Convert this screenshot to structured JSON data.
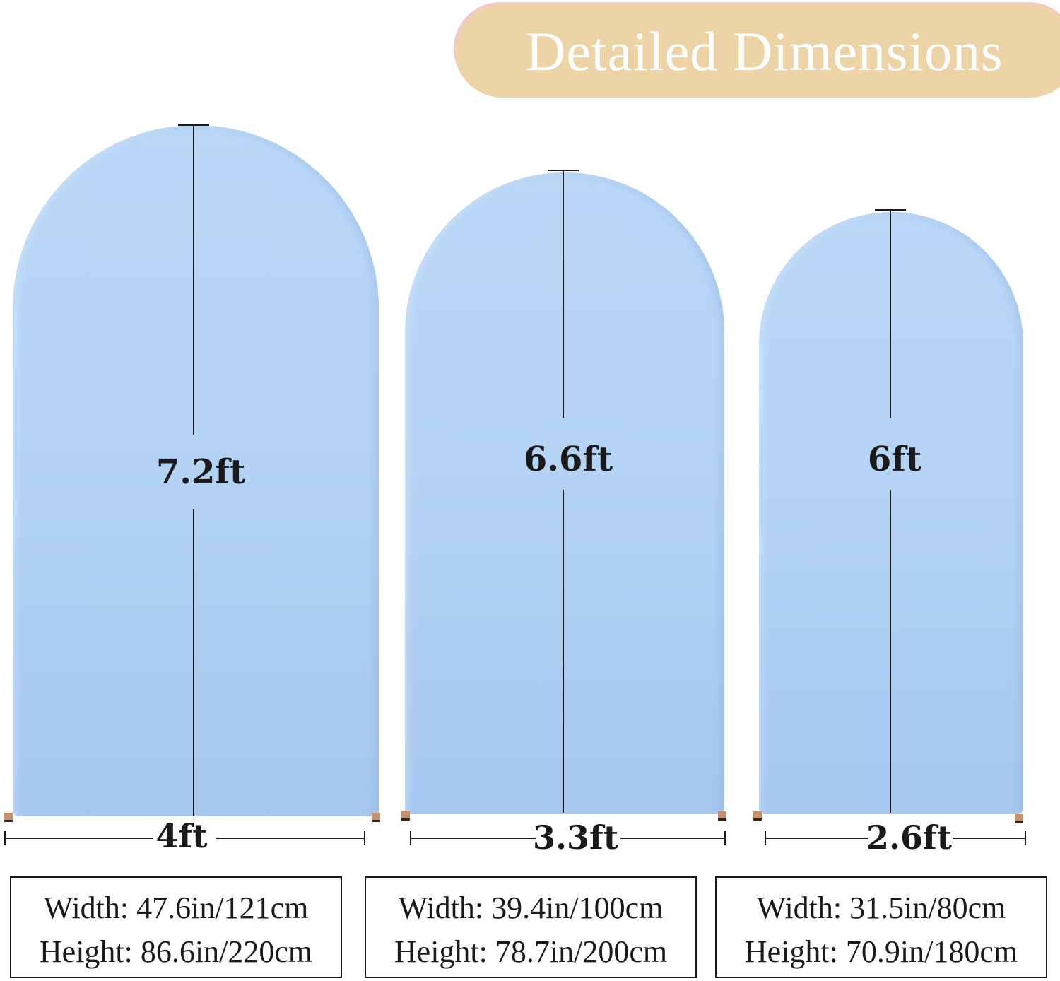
{
  "banner": {
    "title": "Detailed Dimensions"
  },
  "arches": [
    {
      "height_label": "7.2ft",
      "width_label": "4ft",
      "width_spec": "Width: 47.6in/121cm",
      "height_spec": "Height: 86.6in/220cm"
    },
    {
      "height_label": "6.6ft",
      "width_label": "3.3ft",
      "width_spec": "Width: 39.4in/100cm",
      "height_spec": "Height: 78.7in/200cm"
    },
    {
      "height_label": "6ft",
      "width_label": "2.6ft",
      "width_spec": "Width: 31.5in/80cm",
      "height_spec": "Height: 70.9in/180cm"
    }
  ],
  "colors": {
    "banner": "#ecd4a6",
    "arch": "#b4d3f5",
    "ink": "#1a1a1a"
  }
}
